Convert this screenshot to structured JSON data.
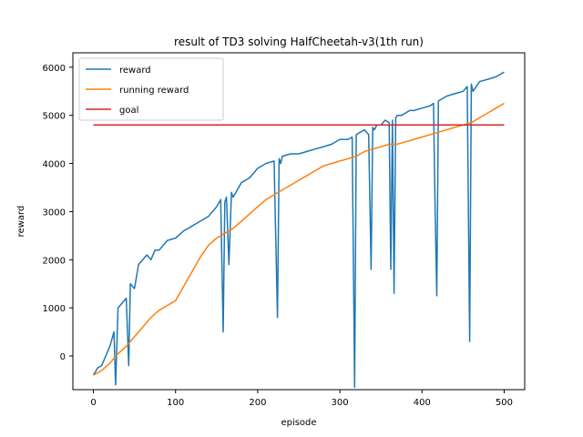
{
  "chart_data": {
    "type": "line",
    "title": "result of TD3 solving HalfCheetah-v3(1th run)",
    "xlabel": "episode",
    "ylabel": "reward",
    "xlim": [
      -25,
      525
    ],
    "ylim": [
      -700,
      6300
    ],
    "xticks": [
      0,
      100,
      200,
      300,
      400,
      500
    ],
    "yticks": [
      0,
      1000,
      2000,
      3000,
      4000,
      5000,
      6000
    ],
    "legend_position": "top-left",
    "series": [
      {
        "name": "reward",
        "color": "#1f77b4",
        "x": [
          0,
          5,
          10,
          15,
          20,
          25,
          27,
          30,
          35,
          40,
          43,
          45,
          50,
          55,
          60,
          65,
          70,
          75,
          80,
          90,
          100,
          110,
          120,
          130,
          140,
          150,
          155,
          158,
          160,
          162,
          165,
          168,
          170,
          180,
          190,
          200,
          210,
          220,
          224,
          226,
          228,
          230,
          240,
          250,
          260,
          270,
          280,
          290,
          300,
          310,
          315,
          318,
          320,
          325,
          330,
          335,
          338,
          340,
          342,
          345,
          350,
          355,
          360,
          362,
          364,
          366,
          368,
          370,
          375,
          380,
          385,
          390,
          400,
          410,
          414,
          416,
          418,
          420,
          430,
          440,
          450,
          455,
          458,
          460,
          462,
          470,
          480,
          490,
          495,
          500
        ],
        "y": [
          -400,
          -250,
          -200,
          0,
          200,
          500,
          -600,
          1000,
          1100,
          1200,
          -200,
          1500,
          1400,
          1900,
          2000,
          2100,
          2000,
          2200,
          2200,
          2400,
          2450,
          2600,
          2700,
          2800,
          2900,
          3100,
          3250,
          500,
          3200,
          3300,
          1900,
          3400,
          3300,
          3600,
          3700,
          3900,
          4000,
          4050,
          800,
          4100,
          4000,
          4150,
          4200,
          4200,
          4250,
          4300,
          4350,
          4400,
          4500,
          4500,
          4550,
          -650,
          4600,
          4650,
          4700,
          4600,
          1800,
          4750,
          4700,
          4800,
          4800,
          4900,
          4850,
          1800,
          4900,
          1300,
          4950,
          5000,
          5000,
          5050,
          5100,
          5100,
          5150,
          5200,
          5250,
          3000,
          1250,
          5300,
          5400,
          5450,
          5500,
          5600,
          300,
          5650,
          5500,
          5700,
          5750,
          5800,
          5850,
          5900
        ]
      },
      {
        "name": "running reward",
        "color": "#ff7f0e",
        "x": [
          0,
          10,
          20,
          30,
          40,
          50,
          60,
          70,
          80,
          90,
          100,
          110,
          120,
          130,
          140,
          150,
          160,
          170,
          180,
          190,
          200,
          210,
          220,
          230,
          240,
          250,
          260,
          270,
          280,
          290,
          300,
          310,
          320,
          330,
          340,
          350,
          360,
          370,
          380,
          390,
          400,
          410,
          420,
          430,
          440,
          450,
          460,
          470,
          480,
          490,
          500
        ],
        "y": [
          -400,
          -300,
          -150,
          50,
          200,
          400,
          600,
          800,
          950,
          1050,
          1150,
          1450,
          1750,
          2050,
          2300,
          2450,
          2550,
          2650,
          2800,
          2950,
          3100,
          3250,
          3350,
          3450,
          3550,
          3650,
          3750,
          3850,
          3950,
          4000,
          4050,
          4100,
          4150,
          4250,
          4300,
          4350,
          4400,
          4400,
          4450,
          4500,
          4550,
          4600,
          4650,
          4700,
          4750,
          4800,
          4850,
          4950,
          5050,
          5150,
          5250
        ]
      },
      {
        "name": "goal",
        "color": "#d62728",
        "x": [
          0,
          500
        ],
        "y": [
          4800,
          4800
        ]
      }
    ]
  }
}
